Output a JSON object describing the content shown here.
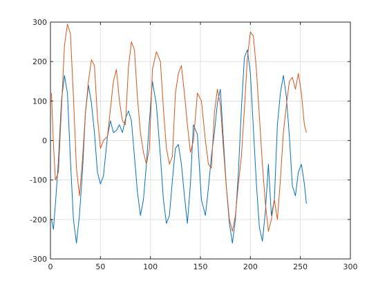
{
  "chart_data": {
    "type": "line",
    "title": "",
    "xlabel": "",
    "ylabel": "",
    "xlim": [
      0,
      300
    ],
    "ylim": [
      -300,
      300
    ],
    "xticks": [
      0,
      50,
      100,
      150,
      200,
      250,
      300
    ],
    "yticks": [
      -300,
      -200,
      -100,
      0,
      100,
      200,
      300
    ],
    "xtick_labels": [
      "0",
      "50",
      "100",
      "150",
      "200",
      "250",
      "300"
    ],
    "ytick_labels": [
      "-300",
      "-200",
      "-100",
      "0",
      "100",
      "200",
      "300"
    ],
    "grid": true,
    "legend": "none",
    "series": [
      {
        "color": "#0072BD",
        "x": [
          1,
          3,
          5,
          8,
          11,
          14,
          17,
          20,
          23,
          26,
          29,
          32,
          35,
          38,
          41,
          44,
          47,
          50,
          53,
          57,
          60,
          63,
          66,
          69,
          72,
          75,
          78,
          81,
          84,
          87,
          90,
          93,
          96,
          99,
          102,
          106,
          110,
          113,
          116,
          119,
          122,
          125,
          128,
          131,
          134,
          137,
          140,
          143,
          147,
          151,
          155,
          158,
          161,
          164,
          167,
          170,
          173,
          176,
          179,
          182,
          185,
          188,
          191,
          194,
          197,
          200,
          203,
          206,
          209,
          212,
          215,
          218,
          221,
          224,
          227,
          230,
          233,
          236,
          239,
          242,
          245,
          248,
          251,
          254,
          256
        ],
        "y": [
          -200,
          -225,
          -160,
          -50,
          100,
          165,
          120,
          -50,
          -200,
          -260,
          -190,
          -80,
          70,
          140,
          95,
          20,
          -80,
          -110,
          -90,
          10,
          50,
          20,
          25,
          40,
          20,
          55,
          75,
          50,
          -40,
          -130,
          -190,
          -150,
          -60,
          50,
          150,
          90,
          -40,
          -150,
          -210,
          -190,
          -100,
          -20,
          -10,
          -60,
          -140,
          -210,
          -110,
          40,
          15,
          -150,
          -190,
          -120,
          -40,
          20,
          95,
          130,
          0,
          -120,
          -210,
          -260,
          -200,
          -80,
          80,
          210,
          230,
          170,
          30,
          -110,
          -220,
          -255,
          -180,
          -60,
          -190,
          -150,
          40,
          120,
          165,
          110,
          10,
          -115,
          -140,
          -80,
          -60,
          -110,
          -160
        ]
      },
      {
        "color": "#D95319",
        "x": [
          1,
          3,
          5,
          8,
          11,
          14,
          17,
          20,
          23,
          26,
          29,
          32,
          35,
          38,
          41,
          44,
          47,
          50,
          53,
          57,
          60,
          63,
          66,
          69,
          72,
          75,
          78,
          81,
          84,
          87,
          90,
          93,
          96,
          99,
          102,
          106,
          110,
          113,
          116,
          119,
          122,
          125,
          128,
          131,
          134,
          137,
          140,
          143,
          147,
          151,
          155,
          158,
          161,
          164,
          167,
          170,
          173,
          176,
          179,
          182,
          185,
          188,
          191,
          194,
          197,
          200,
          203,
          206,
          209,
          212,
          215,
          218,
          221,
          224,
          227,
          230,
          233,
          236,
          239,
          242,
          245,
          248,
          251,
          254,
          256
        ],
        "y": [
          120,
          -10,
          -100,
          -80,
          80,
          240,
          295,
          270,
          110,
          -70,
          -140,
          -50,
          70,
          150,
          205,
          190,
          60,
          -20,
          0,
          10,
          80,
          150,
          180,
          100,
          50,
          40,
          185,
          250,
          230,
          110,
          20,
          -30,
          -60,
          -20,
          180,
          225,
          200,
          80,
          -20,
          -60,
          -40,
          120,
          170,
          190,
          120,
          40,
          -30,
          0,
          120,
          100,
          0,
          -60,
          -70,
          70,
          130,
          90,
          -20,
          -120,
          -200,
          -230,
          -190,
          -110,
          -40,
          80,
          210,
          275,
          265,
          180,
          60,
          -60,
          -160,
          -230,
          -200,
          -150,
          -200,
          -100,
          20,
          90,
          150,
          160,
          130,
          170,
          120,
          40,
          20
        ]
      }
    ]
  }
}
